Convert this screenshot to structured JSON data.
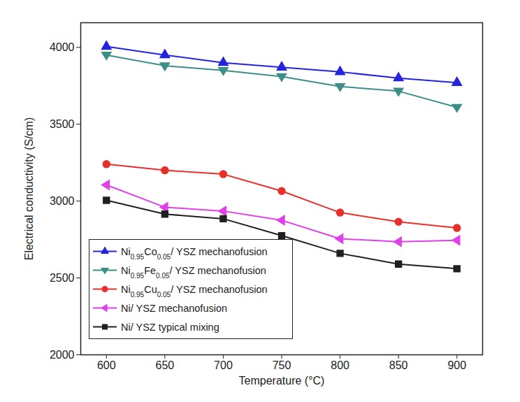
{
  "chart_data": {
    "type": "line",
    "x_label": "Temperature (°C)",
    "y_label": "Electrical conductivity (S/cm)",
    "x": [
      600,
      650,
      700,
      750,
      800,
      850,
      900
    ],
    "xlim": [
      578,
      922
    ],
    "xticks": [
      600,
      650,
      700,
      750,
      800,
      850,
      900
    ],
    "ylim": [
      2000,
      4160
    ],
    "yticks": [
      2000,
      2500,
      3000,
      3500,
      4000
    ],
    "grid": false,
    "legend": "lower left",
    "series": [
      {
        "name": "Ni0.95Co0.05/ YSZ mechanofusion",
        "color": "#2424e0",
        "marker": "triangle-up",
        "values": [
          4005,
          3950,
          3900,
          3870,
          3840,
          3800,
          3770
        ]
      },
      {
        "name": "Ni0.95Fe0.05/ YSZ mechanofusion",
        "color": "#3b8f88",
        "marker": "triangle-down",
        "values": [
          3950,
          3880,
          3850,
          3810,
          3745,
          3715,
          3610
        ]
      },
      {
        "name": "Ni0.95Cu0.05/ YSZ mechanofusion",
        "color": "#e8302a",
        "marker": "circle",
        "values": [
          3240,
          3200,
          3175,
          3065,
          2925,
          2865,
          2825
        ]
      },
      {
        "name": "Ni/ YSZ mechanofusion",
        "color": "#e040e8",
        "marker": "triangle-left",
        "values": [
          3105,
          2960,
          2935,
          2875,
          2755,
          2735,
          2745
        ]
      },
      {
        "name": "Ni/ YSZ typical mixing",
        "color": "#202020",
        "marker": "square",
        "values": [
          3005,
          2915,
          2885,
          2775,
          2660,
          2590,
          2560
        ]
      }
    ]
  }
}
